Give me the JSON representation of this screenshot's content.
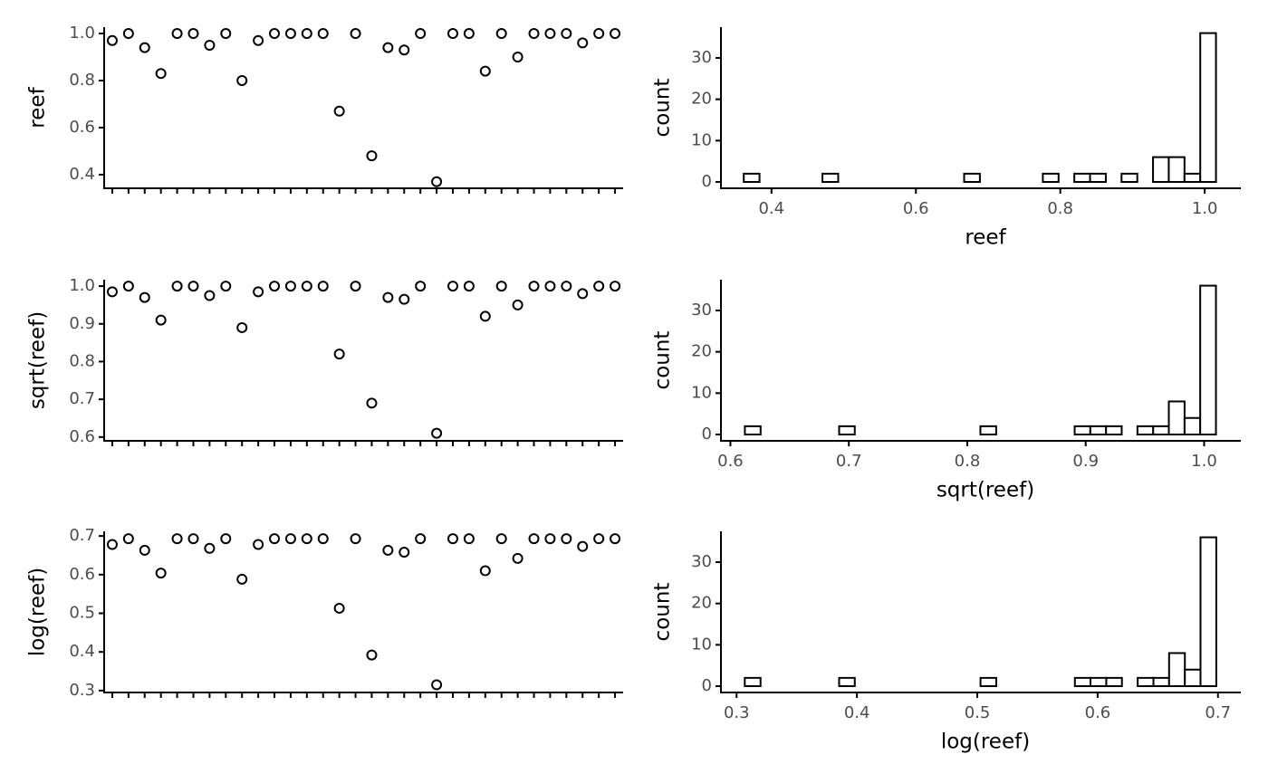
{
  "chart_data": [
    {
      "type": "scatter",
      "ylabel": "reef",
      "categories": [
        null,
        null,
        null,
        null,
        null,
        null,
        null,
        null,
        null,
        null,
        null,
        null,
        null,
        null,
        null,
        null,
        null,
        null,
        null,
        null,
        null,
        null,
        null,
        null,
        null,
        null,
        null,
        null,
        null,
        null,
        null,
        null
      ],
      "values": [
        0.97,
        1.0,
        0.94,
        0.83,
        1.0,
        1.0,
        0.95,
        1.0,
        0.8,
        0.97,
        1.0,
        1.0,
        1.0,
        1.0,
        0.67,
        1.0,
        0.48,
        0.94,
        0.93,
        1.0,
        0.37,
        1.0,
        1.0,
        0.84,
        1.0,
        0.9,
        1.0,
        1.0,
        1.0,
        0.96,
        1.0,
        1.0
      ],
      "color": "#000000",
      "ylim": [
        0.342,
        1.027
      ],
      "yticks": [
        0.4,
        0.6,
        0.8,
        {
          "value": 1,
          "label": "1.0"
        }
      ]
    },
    {
      "type": "histogram",
      "xlabel": "reef",
      "ylabel": "count",
      "bins": [
        0.3616,
        0.3834,
        0.4052,
        0.427,
        0.4488,
        0.4706,
        0.4924,
        0.5142,
        0.536,
        0.5578,
        0.5796,
        0.6014,
        0.6232,
        0.645,
        0.6668,
        0.6886,
        0.7104,
        0.7322,
        0.754,
        0.7758,
        0.7976,
        0.8194,
        0.8412,
        0.863,
        0.8848,
        0.9066,
        0.9284,
        0.9502,
        0.972,
        0.9938,
        1.0156
      ],
      "values": [
        2,
        0,
        0,
        0,
        0,
        2,
        0,
        0,
        0,
        0,
        0,
        0,
        0,
        0,
        2,
        0,
        0,
        0,
        0,
        2,
        0,
        2,
        2,
        0,
        2,
        0,
        6,
        6,
        2,
        36
      ],
      "color": "#ffffff",
      "xlim": [
        0.33,
        1.05
      ],
      "xticks": [
        0.4,
        0.6,
        0.8,
        {
          "value": 1,
          "label": "1.0"
        }
      ],
      "ylim": [
        -1.53,
        37.44
      ],
      "yticks": [
        0,
        10,
        20,
        30
      ]
    },
    {
      "type": "scatter",
      "ylabel": "sqrt(reef)",
      "categories": [
        null,
        null,
        null,
        null,
        null,
        null,
        null,
        null,
        null,
        null,
        null,
        null,
        null,
        null,
        null,
        null,
        null,
        null,
        null,
        null,
        null,
        null,
        null,
        null,
        null,
        null,
        null,
        null,
        null,
        null,
        null,
        null
      ],
      "values": [
        0.985,
        1.0,
        0.97,
        0.91,
        1.0,
        1.0,
        0.975,
        1.0,
        0.89,
        0.985,
        1.0,
        1.0,
        1.0,
        1.0,
        0.82,
        1.0,
        0.69,
        0.97,
        0.965,
        1.0,
        0.61,
        1.0,
        1.0,
        0.92,
        1.0,
        0.95,
        1.0,
        1.0,
        1.0,
        0.98,
        1.0,
        1.0
      ],
      "color": "#000000",
      "ylim": [
        0.59,
        1.017
      ],
      "yticks": [
        0.6,
        0.7,
        0.8,
        0.9,
        {
          "value": 1,
          "label": "1.0"
        }
      ]
    },
    {
      "type": "histogram",
      "xlabel": "sqrt(reef)",
      "ylabel": "count",
      "bins": [
        0.6122,
        0.6255,
        0.6387,
        0.652,
        0.6652,
        0.6785,
        0.6918,
        0.705,
        0.7183,
        0.7315,
        0.7448,
        0.7581,
        0.7713,
        0.7846,
        0.7978,
        0.8111,
        0.8244,
        0.8376,
        0.8509,
        0.8641,
        0.8774,
        0.8907,
        0.9039,
        0.9172,
        0.9304,
        0.9437,
        0.957,
        0.9702,
        0.9835,
        0.9967,
        1.01
      ],
      "values": [
        2,
        0,
        0,
        0,
        0,
        0,
        2,
        0,
        0,
        0,
        0,
        0,
        0,
        0,
        0,
        2,
        0,
        0,
        0,
        0,
        0,
        2,
        2,
        2,
        0,
        2,
        2,
        8,
        4,
        36
      ],
      "color": "#ffffff",
      "xlim": [
        0.592,
        1.031
      ],
      "xticks": [
        0.6,
        0.7,
        0.8,
        0.9,
        {
          "value": 1,
          "label": "1.0"
        }
      ],
      "ylim": [
        -1.53,
        37.44
      ],
      "yticks": [
        0,
        10,
        20,
        30
      ]
    },
    {
      "type": "scatter",
      "ylabel": "log(reef)",
      "categories": [
        null,
        null,
        null,
        null,
        null,
        null,
        null,
        null,
        null,
        null,
        null,
        null,
        null,
        null,
        null,
        null,
        null,
        null,
        null,
        null,
        null,
        null,
        null,
        null,
        null,
        null,
        null,
        null,
        null,
        null,
        null,
        null
      ],
      "values": [
        0.678,
        0.693,
        0.663,
        0.604,
        0.693,
        0.693,
        0.668,
        0.693,
        0.588,
        0.678,
        0.693,
        0.693,
        0.693,
        0.693,
        0.513,
        0.693,
        0.392,
        0.663,
        0.658,
        0.693,
        0.315,
        0.693,
        0.693,
        0.61,
        0.693,
        0.642,
        0.693,
        0.693,
        0.693,
        0.673,
        0.693,
        0.693
      ],
      "color": "#000000",
      "ylim": [
        0.295,
        0.712
      ],
      "yticks": [
        0.3,
        0.4,
        0.5,
        0.6,
        0.7
      ]
    },
    {
      "type": "histogram",
      "xlabel": "log(reef)",
      "ylabel": "count",
      "bins": [
        0.3068,
        0.3199,
        0.3329,
        0.346,
        0.359,
        0.3721,
        0.3852,
        0.3982,
        0.4113,
        0.4243,
        0.4374,
        0.4505,
        0.4635,
        0.4766,
        0.4896,
        0.5027,
        0.5158,
        0.5288,
        0.5419,
        0.5549,
        0.568,
        0.5811,
        0.5941,
        0.6072,
        0.6202,
        0.6333,
        0.6464,
        0.6594,
        0.6725,
        0.6855,
        0.6986
      ],
      "values": [
        2,
        0,
        0,
        0,
        0,
        0,
        2,
        0,
        0,
        0,
        0,
        0,
        0,
        0,
        0,
        2,
        0,
        0,
        0,
        0,
        0,
        2,
        2,
        2,
        0,
        2,
        2,
        8,
        4,
        36
      ],
      "color": "#ffffff",
      "xlim": [
        0.287,
        0.719
      ],
      "xticks": [
        0.3,
        0.4,
        0.5,
        0.6,
        0.7
      ],
      "ylim": [
        -1.53,
        37.44
      ],
      "yticks": [
        0,
        10,
        20,
        30
      ]
    }
  ]
}
